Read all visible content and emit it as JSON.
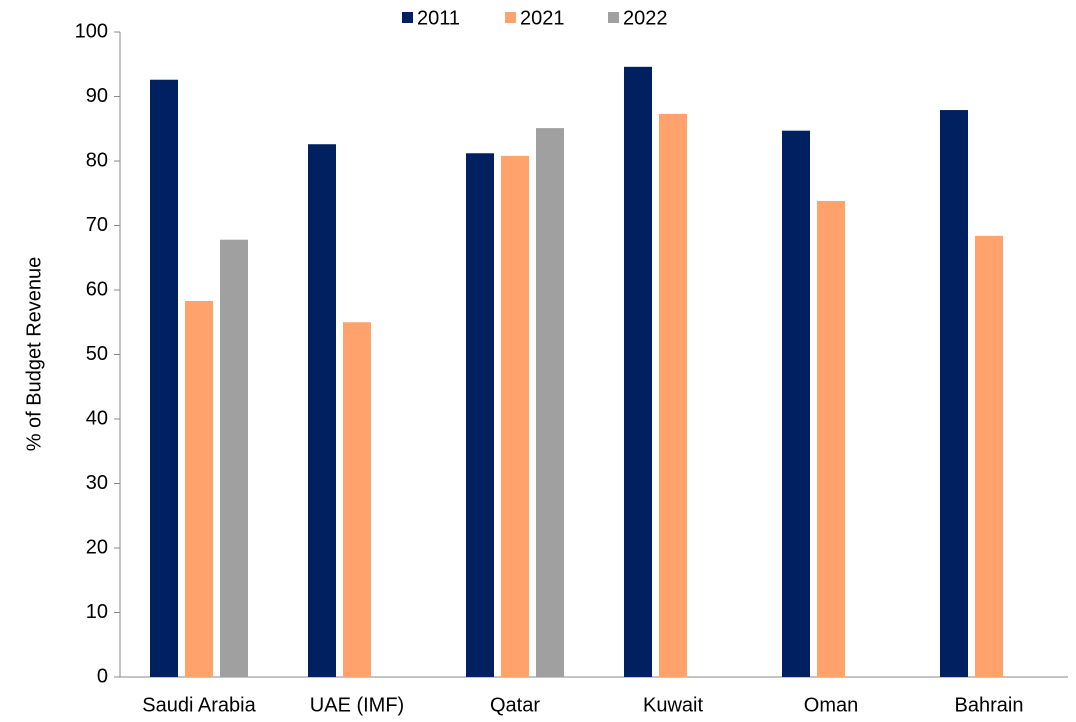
{
  "chart_data": {
    "type": "bar",
    "categories": [
      "Saudi Arabia",
      "UAE (IMF)",
      "Qatar",
      "Kuwait",
      "Oman",
      "Bahrain"
    ],
    "series": [
      {
        "name": "2011",
        "color": "#002060",
        "values": [
          92.6,
          82.6,
          81.2,
          94.6,
          84.7,
          87.9
        ]
      },
      {
        "name": "2021",
        "color": "#ffa26b",
        "values": [
          58.3,
          55.0,
          80.8,
          87.3,
          73.8,
          68.4
        ]
      },
      {
        "name": "2022",
        "color": "#a0a0a0",
        "values": [
          67.8,
          null,
          85.1,
          null,
          null,
          null
        ]
      }
    ],
    "ylabel": "% of Budget Revenue",
    "ylim": [
      0,
      100
    ],
    "yticks": [
      0,
      10,
      20,
      30,
      40,
      50,
      60,
      70,
      80,
      90,
      100
    ],
    "grid": false,
    "legend": "top"
  }
}
